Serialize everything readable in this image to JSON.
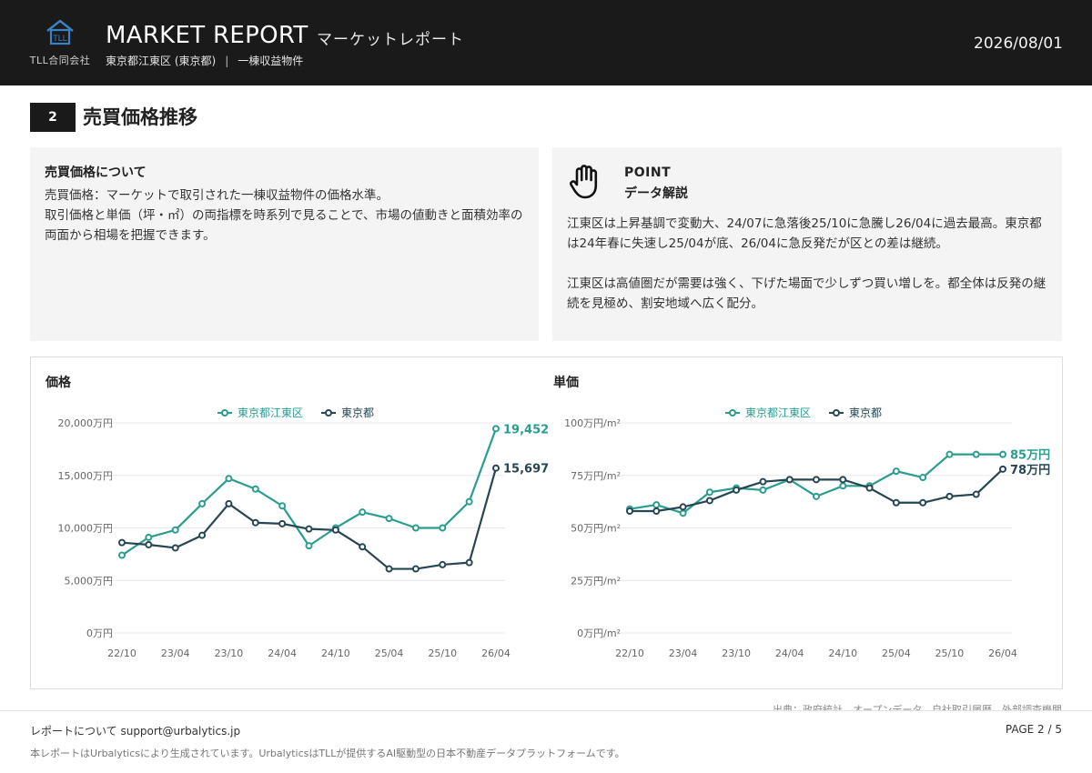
{
  "header": {
    "company": "TLL合同会社",
    "title": "MARKET REPORT",
    "title_jp": "マーケットレポート",
    "area": "東京都江東区 (東京都)",
    "property_type": "一棟収益物件",
    "date": "2026/08/01"
  },
  "section": {
    "number": "2",
    "title": "売買価格推移"
  },
  "about": {
    "title": "売買価格について",
    "line1": "売買価格：マーケットで取引された一棟収益物件の価格水準。",
    "line2": "取引価格と単価（坪・㎡）の両指標を時系列で見ることで、市場の値動きと面積効率の両面から相場を把握できます。"
  },
  "point": {
    "label": "POINT",
    "subtitle": "データ解説",
    "paragraph1": "江東区は上昇基調で変動大、24/07に急落後25/10に急騰し26/04に過去最高。東京都は24年春に失速し25/04が底、26/04に急反発だが区との差は継続。",
    "paragraph2": "江東区は高値圏だが需要は強く、下げた場面で少しずつ買い増しを。都全体は反発の継続を見極め、割安地域へ広く配分。"
  },
  "colors": {
    "ward": "#2a9d8f",
    "tokyo": "#264653",
    "grid": "#e8e8e8",
    "axis_text": "#666666"
  },
  "chart_data": [
    {
      "type": "line",
      "title": "価格",
      "x": [
        "22/10",
        "23/01",
        "23/04",
        "23/07",
        "23/10",
        "24/01",
        "24/04",
        "24/07",
        "24/10",
        "25/01",
        "25/04",
        "25/07",
        "25/10",
        "26/01",
        "26/04"
      ],
      "x_tick_labels": [
        "22/10",
        "23/04",
        "23/10",
        "24/04",
        "24/10",
        "25/04",
        "25/10",
        "26/04"
      ],
      "y_tick_labels": [
        "0万円",
        "5,000万円",
        "10,000万円",
        "15,000万円",
        "20,000万円"
      ],
      "ylim": [
        0,
        20000
      ],
      "y_unit": "万円",
      "series": [
        {
          "name": "東京都江東区",
          "values": [
            7400,
            9100,
            9800,
            12300,
            14700,
            13700,
            12100,
            8300,
            10000,
            11500,
            10900,
            10000,
            10000,
            12500,
            19452
          ],
          "end_label": "19,452"
        },
        {
          "name": "東京都",
          "values": [
            8600,
            8400,
            8100,
            9300,
            12300,
            10500,
            10400,
            9900,
            9800,
            8200,
            6100,
            6100,
            6500,
            6700,
            15697
          ],
          "end_label": "15,697"
        }
      ],
      "legend": "top-center",
      "grid": true
    },
    {
      "type": "line",
      "title": "単価",
      "x": [
        "22/10",
        "23/01",
        "23/04",
        "23/07",
        "23/10",
        "24/01",
        "24/04",
        "24/07",
        "24/10",
        "25/01",
        "25/04",
        "25/07",
        "25/10",
        "26/01",
        "26/04"
      ],
      "x_tick_labels": [
        "22/10",
        "23/04",
        "23/10",
        "24/04",
        "24/10",
        "25/04",
        "25/10",
        "26/04"
      ],
      "y_tick_labels": [
        "0万円/m²",
        "25万円/m²",
        "50万円/m²",
        "75万円/m²",
        "100万円/m²"
      ],
      "ylim": [
        0,
        100
      ],
      "y_unit": "万円/m²",
      "series": [
        {
          "name": "東京都江東区",
          "values": [
            59,
            61,
            57,
            67,
            69,
            68,
            73,
            65,
            70,
            70,
            77,
            74,
            85,
            85,
            85
          ],
          "end_label": "85万円"
        },
        {
          "name": "東京都",
          "values": [
            58,
            58,
            60,
            63,
            68,
            72,
            73,
            73,
            73,
            69,
            62,
            62,
            65,
            66,
            78
          ],
          "end_label": "78万円"
        }
      ],
      "legend": "top-center",
      "grid": true
    }
  ],
  "source": "出典：政府統計、オープンデータ、自社取引履歴、外部調査機関",
  "footer": {
    "contact": "レポートについて support@urbalytics.jp",
    "page": "PAGE 2 / 5",
    "disclaimer": "本レポートはUrbalyticsにより生成されています。UrbalyticsはTLLが提供するAI駆動型の日本不動産データプラットフォームです。"
  }
}
